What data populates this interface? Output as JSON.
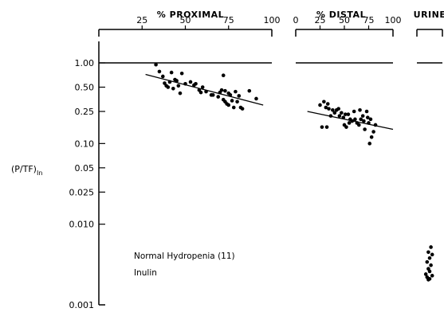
{
  "chart_data": {
    "type": "scatter",
    "ylabel": "(P/TF)",
    "ylabel_subscript": "In",
    "yscale": "log",
    "ylim": [
      0.001,
      1.0
    ],
    "y_ticks": [
      {
        "value": 1.0,
        "label": "1.00"
      },
      {
        "value": 0.5,
        "label": "0.50"
      },
      {
        "value": 0.25,
        "label": "0.25"
      },
      {
        "value": 0.1,
        "label": "0.10"
      },
      {
        "value": 0.05,
        "label": "0.05"
      },
      {
        "value": 0.025,
        "label": "0.025"
      },
      {
        "value": 0.01,
        "label": "0.010"
      },
      {
        "value": 0.001,
        "label": "0.001"
      }
    ],
    "annotations": [
      "Normal Hydropenia (11)",
      "Inulin"
    ],
    "reference_line_y": 1.0,
    "panels": [
      {
        "title": "% PROXIMAL",
        "xlim": [
          0,
          100
        ],
        "x_ticks": [
          {
            "value": 25,
            "label": "25"
          },
          {
            "value": 50,
            "label": "50"
          },
          {
            "value": 75,
            "label": "75"
          },
          {
            "value": 100,
            "label": "100"
          }
        ],
        "points": [
          [
            33,
            0.95
          ],
          [
            35,
            0.78
          ],
          [
            37,
            0.68
          ],
          [
            38,
            0.56
          ],
          [
            39,
            0.52
          ],
          [
            40,
            0.5
          ],
          [
            41,
            0.58
          ],
          [
            42,
            0.76
          ],
          [
            43,
            0.48
          ],
          [
            44,
            0.62
          ],
          [
            45,
            0.6
          ],
          [
            46,
            0.52
          ],
          [
            47,
            0.42
          ],
          [
            48,
            0.74
          ],
          [
            50,
            0.55
          ],
          [
            53,
            0.58
          ],
          [
            55,
            0.53
          ],
          [
            56,
            0.55
          ],
          [
            58,
            0.46
          ],
          [
            59,
            0.43
          ],
          [
            60,
            0.5
          ],
          [
            62,
            0.44
          ],
          [
            65,
            0.4
          ],
          [
            66,
            0.4
          ],
          [
            69,
            0.38
          ],
          [
            70,
            0.43
          ],
          [
            71,
            0.46
          ],
          [
            72,
            0.7
          ],
          [
            72,
            0.35
          ],
          [
            73,
            0.33
          ],
          [
            73,
            0.45
          ],
          [
            74,
            0.31
          ],
          [
            75,
            0.42
          ],
          [
            75,
            0.3
          ],
          [
            76,
            0.4
          ],
          [
            77,
            0.34
          ],
          [
            78,
            0.28
          ],
          [
            79,
            0.44
          ],
          [
            80,
            0.33
          ],
          [
            81,
            0.39
          ],
          [
            82,
            0.28
          ],
          [
            83,
            0.27
          ],
          [
            87,
            0.45
          ],
          [
            91,
            0.36
          ]
        ],
        "fit_line": {
          "x": [
            27,
            95
          ],
          "y": [
            0.72,
            0.3
          ]
        }
      },
      {
        "title": "% DISTAL",
        "xlim": [
          0,
          100
        ],
        "x_ticks": [
          {
            "value": 0,
            "label": "0"
          },
          {
            "value": 25,
            "label": "25"
          },
          {
            "value": 50,
            "label": "50"
          },
          {
            "value": 75,
            "label": "75"
          },
          {
            "value": 100,
            "label": "100"
          }
        ],
        "points": [
          [
            25,
            0.3
          ],
          [
            27,
            0.16
          ],
          [
            29,
            0.33
          ],
          [
            31,
            0.28
          ],
          [
            32,
            0.16
          ],
          [
            33,
            0.31
          ],
          [
            34,
            0.27
          ],
          [
            36,
            0.22
          ],
          [
            38,
            0.26
          ],
          [
            40,
            0.24
          ],
          [
            42,
            0.26
          ],
          [
            44,
            0.27
          ],
          [
            45,
            0.22
          ],
          [
            47,
            0.24
          ],
          [
            49,
            0.21
          ],
          [
            50,
            0.17
          ],
          [
            51,
            0.23
          ],
          [
            52,
            0.16
          ],
          [
            54,
            0.23
          ],
          [
            55,
            0.18
          ],
          [
            56,
            0.2
          ],
          [
            58,
            0.19
          ],
          [
            60,
            0.25
          ],
          [
            61,
            0.2
          ],
          [
            63,
            0.18
          ],
          [
            65,
            0.17
          ],
          [
            66,
            0.26
          ],
          [
            67,
            0.2
          ],
          [
            69,
            0.22
          ],
          [
            70,
            0.19
          ],
          [
            71,
            0.15
          ],
          [
            73,
            0.25
          ],
          [
            74,
            0.21
          ],
          [
            75,
            0.18
          ],
          [
            76,
            0.1
          ],
          [
            77,
            0.2
          ],
          [
            78,
            0.12
          ],
          [
            80,
            0.14
          ],
          [
            82,
            0.17
          ]
        ],
        "fit_line": {
          "x": [
            12,
            100
          ],
          "y": [
            0.25,
            0.15
          ]
        }
      },
      {
        "title": "URINE",
        "xlim": [
          0,
          1
        ],
        "x_ticks": [],
        "points": [
          [
            0.55,
            0.0052
          ],
          [
            0.45,
            0.0045
          ],
          [
            0.6,
            0.0042
          ],
          [
            0.5,
            0.0038
          ],
          [
            0.4,
            0.0034
          ],
          [
            0.55,
            0.0031
          ],
          [
            0.45,
            0.0028
          ],
          [
            0.5,
            0.0026
          ],
          [
            0.35,
            0.0024
          ],
          [
            0.6,
            0.0023
          ],
          [
            0.4,
            0.0022
          ],
          [
            0.5,
            0.0021
          ],
          [
            0.45,
            0.00205
          ]
        ]
      }
    ]
  }
}
